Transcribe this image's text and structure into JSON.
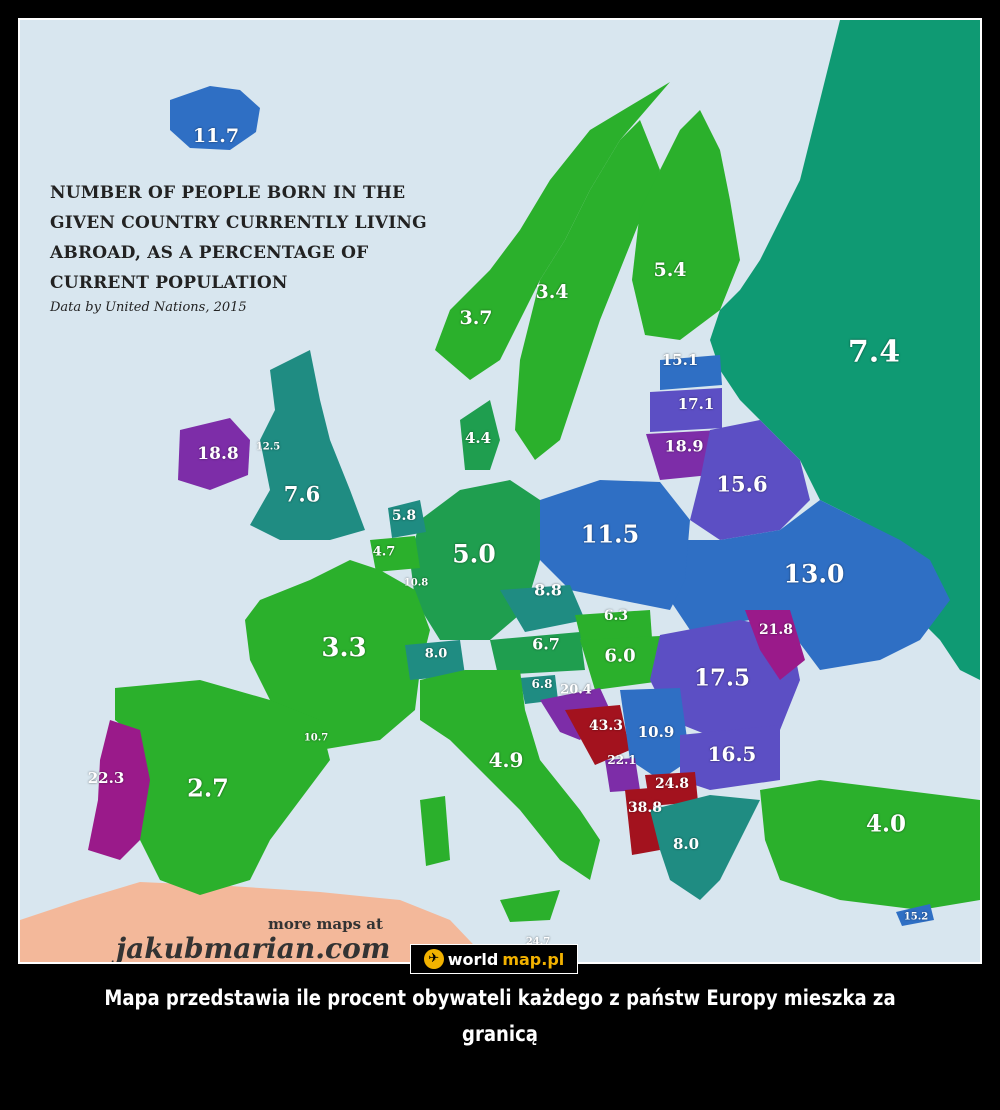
{
  "map": {
    "title_lines": [
      "NUMBER OF PEOPLE BORN IN THE",
      "GIVEN COUNTRY CURRENTLY LIVING",
      "ABROAD, AS A PERCENTAGE OF",
      "CURRENT POPULATION"
    ],
    "subtitle": "Data by United Nations, 2015",
    "more_maps": "more maps at",
    "site": "jakubmarian.com",
    "colors": {
      "sea": "#d8e6ef",
      "green": "#2bb02c",
      "mid_green": "#1f9e4f",
      "teal": "#1f8c82",
      "russia": "#0f9a73",
      "blue": "#2f6fc4",
      "violet": "#5c4fc4",
      "purple": "#7d2da8",
      "magenta": "#9a1a8a",
      "red": "#a3121e",
      "africa": "#f3b89a"
    },
    "labels": [
      {
        "name": "Iceland",
        "value": "11.7"
      },
      {
        "name": "Norway",
        "value": "3.7"
      },
      {
        "name": "Sweden",
        "value": "3.4"
      },
      {
        "name": "Finland",
        "value": "5.4"
      },
      {
        "name": "Russia",
        "value": "7.4"
      },
      {
        "name": "Estonia",
        "value": "15.1"
      },
      {
        "name": "Latvia",
        "value": "17.1"
      },
      {
        "name": "Lithuania",
        "value": "18.9"
      },
      {
        "name": "Belarus",
        "value": "15.6"
      },
      {
        "name": "Ireland",
        "value": "18.8"
      },
      {
        "name": "Northern Ireland",
        "value": "12.5"
      },
      {
        "name": "United Kingdom",
        "value": "7.6"
      },
      {
        "name": "Denmark",
        "value": "4.4"
      },
      {
        "name": "Netherlands",
        "value": "5.8"
      },
      {
        "name": "Belgium",
        "value": "4.7"
      },
      {
        "name": "Luxembourg",
        "value": "10.8"
      },
      {
        "name": "Germany",
        "value": "5.0"
      },
      {
        "name": "Poland",
        "value": "11.5"
      },
      {
        "name": "Ukraine",
        "value": "13.0"
      },
      {
        "name": "Czechia",
        "value": "8.8"
      },
      {
        "name": "Slovakia",
        "value": "6.3"
      },
      {
        "name": "Austria",
        "value": "6.7"
      },
      {
        "name": "Hungary",
        "value": "6.0"
      },
      {
        "name": "Moldova",
        "value": "21.8"
      },
      {
        "name": "Switzerland",
        "value": "8.0"
      },
      {
        "name": "France",
        "value": "3.3"
      },
      {
        "name": "Romania",
        "value": "17.5"
      },
      {
        "name": "Slovenia",
        "value": "6.8"
      },
      {
        "name": "Croatia",
        "value": "20.4"
      },
      {
        "name": "Bosnia",
        "value": "43.3"
      },
      {
        "name": "Serbia",
        "value": "10.9"
      },
      {
        "name": "Montenegro",
        "value": "22.1"
      },
      {
        "name": "Bulgaria",
        "value": "16.5"
      },
      {
        "name": "Macedonia",
        "value": "24.8"
      },
      {
        "name": "Albania",
        "value": "38.8"
      },
      {
        "name": "Greece",
        "value": "8.0"
      },
      {
        "name": "Turkey",
        "value": "4.0"
      },
      {
        "name": "Cyprus",
        "value": "15.2"
      },
      {
        "name": "Italy",
        "value": "4.9"
      },
      {
        "name": "Andorra",
        "value": "10.7"
      },
      {
        "name": "Portugal",
        "value": "22.3"
      },
      {
        "name": "Spain",
        "value": "2.7"
      },
      {
        "name": "Malta",
        "value": "24.7"
      }
    ]
  },
  "badge": {
    "part1": "world",
    "part2": "map.pl"
  },
  "caption": "Mapa przedstawia ile procent obywateli każdego z państw Europy mieszka za granicą"
}
